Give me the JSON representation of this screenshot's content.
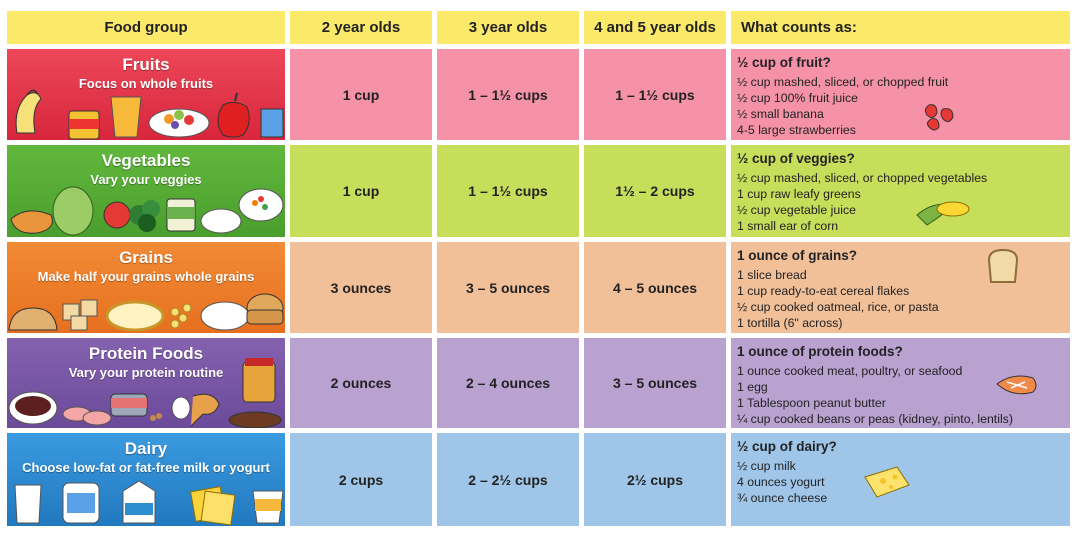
{
  "header": {
    "food_group": "Food group",
    "age1": "2 year olds",
    "age2": "3 year olds",
    "age3": "4 and 5 year olds",
    "counts": "What counts as:"
  },
  "rows": [
    {
      "name": "Fruits",
      "tagline": "Focus on whole fruits",
      "amounts": [
        "1 cup",
        "1 – 1½ cups",
        "1 – 1½ cups"
      ],
      "counts_title": "½ cup of fruit?",
      "counts_items": [
        "½ cup mashed, sliced, or chopped fruit",
        "½ cup 100% fruit juice",
        "½ small banana",
        "4-5 large strawberries"
      ],
      "color_cat": "#e3384f",
      "color_cell": "#f592a8"
    },
    {
      "name": "Vegetables",
      "tagline": "Vary your veggies",
      "amounts": [
        "1 cup",
        "1 – 1½ cups",
        "1½ – 2 cups"
      ],
      "counts_title": "½ cup of veggies?",
      "counts_items": [
        "½ cup mashed, sliced, or chopped vegetables",
        "1 cup raw leafy greens",
        "½ cup vegetable juice",
        "1 small ear of corn"
      ],
      "color_cat": "#56ae3a",
      "color_cell": "#c7de5a"
    },
    {
      "name": "Grains",
      "tagline": "Make half your grains whole grains",
      "amounts": [
        "3 ounces",
        "3 – 5 ounces",
        "4 – 5 ounces"
      ],
      "counts_title": "1 ounce of grains?",
      "counts_items": [
        "1 slice bread",
        "1 cup ready-to-eat cereal flakes",
        "½ cup cooked oatmeal, rice, or pasta",
        "1 tortilla (6\" across)"
      ],
      "color_cat": "#ee7f2d",
      "color_cell": "#f1bf98"
    },
    {
      "name": "Protein Foods",
      "tagline": "Vary your protein routine",
      "amounts": [
        "2 ounces",
        "2 – 4 ounces",
        "3 – 5 ounces"
      ],
      "counts_title": "1 ounce of protein foods?",
      "counts_items": [
        "1 ounce cooked meat, poultry, or seafood",
        "1 egg",
        "1 Tablespoon peanut butter",
        "¼ cup cooked beans or peas (kidney, pinto, lentils)"
      ],
      "color_cat": "#7b58a6",
      "color_cell": "#b9a1d0"
    },
    {
      "name": "Dairy",
      "tagline": "Choose low-fat or fat-free milk or yogurt",
      "amounts": [
        "2 cups",
        "2 – 2½ cups",
        "2½ cups"
      ],
      "counts_title": "½ cup of dairy?",
      "counts_items": [
        "½ cup milk",
        "4 ounces yogurt",
        "¾ ounce cheese"
      ],
      "color_cat": "#2d8fd0",
      "color_cell": "#9fc6e8"
    }
  ],
  "icons": [
    "banana-icon",
    "juice-glass-icon",
    "fruit-salad-icon",
    "apple-icon",
    "strawberries-icon",
    "lettuce-icon",
    "tomato-icon",
    "broccoli-icon",
    "green-beans-can-icon",
    "veggie-bowl-icon",
    "corn-icon",
    "crackers-icon",
    "oatmeal-bowl-icon",
    "pasta-icon",
    "rice-bowl-icon",
    "bun-icon",
    "toast-icon",
    "beans-bowl-icon",
    "ham-slices-icon",
    "tuna-can-icon",
    "egg-icon",
    "drumstick-icon",
    "peanut-butter-jar-icon",
    "steak-icon",
    "fish-steak-icon",
    "milk-glass-icon",
    "milk-jug-icon",
    "milk-carton-icon",
    "cheese-slices-icon",
    "yogurt-cup-icon",
    "swiss-cheese-icon"
  ]
}
